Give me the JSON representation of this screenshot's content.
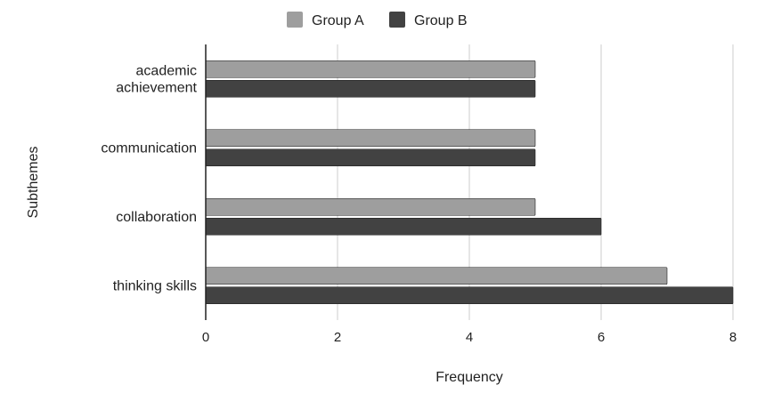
{
  "chart_data": {
    "type": "bar",
    "orientation": "horizontal",
    "categories": [
      [
        "academic",
        "achievement"
      ],
      [
        "communication"
      ],
      [
        "collaboration"
      ],
      [
        "thinking skills"
      ]
    ],
    "series": [
      {
        "name": "Group A",
        "color": "#9e9e9e",
        "values": [
          5,
          5,
          5,
          7
        ]
      },
      {
        "name": "Group B",
        "color": "#424242",
        "values": [
          5,
          5,
          6,
          8
        ]
      }
    ],
    "xlabel": "Frequency",
    "ylabel": "Subthemes",
    "xlim": [
      0,
      8
    ],
    "xticks": [
      0,
      2,
      4,
      6,
      8
    ],
    "grid": "vertical",
    "legend_position": "top-center"
  }
}
